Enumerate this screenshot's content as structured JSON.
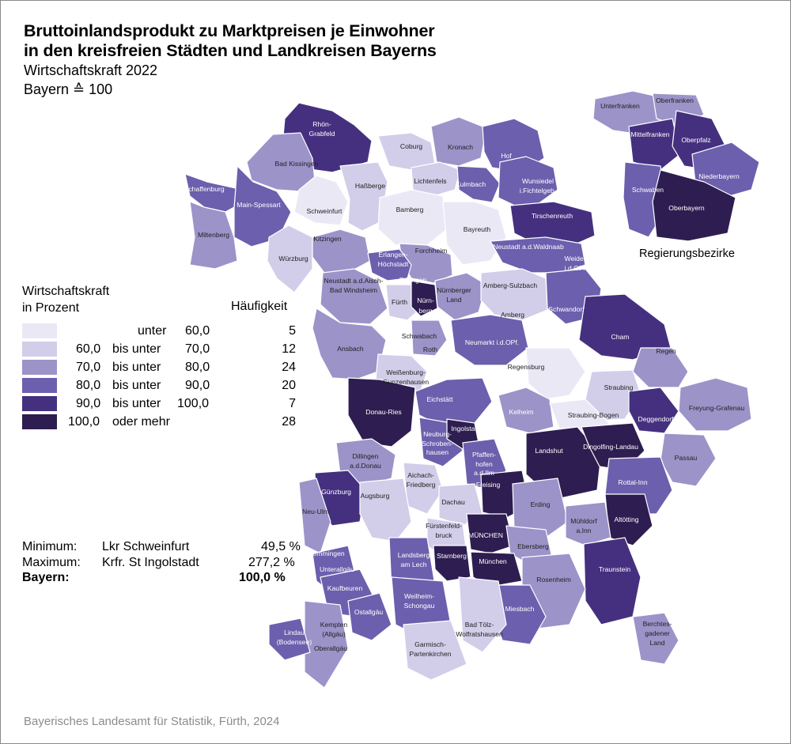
{
  "title_line1": "Bruttoinlandsprodukt zu Marktpreisen je Einwohner",
  "title_line2": "in den kreisfreien Städten und Landkreisen Bayerns",
  "subtitle1": "Wirtschaftskraft 2022",
  "subtitle2": "Bayern ≙ 100",
  "legend": {
    "heading_line1": "Wirtschaftskraft",
    "heading_line2": "in Prozent",
    "freq_heading": "Häufigkeit",
    "classes": [
      {
        "from": "",
        "mid": "unter",
        "to": "60,0",
        "count": "5",
        "color": "#ebe8f6"
      },
      {
        "from": "60,0",
        "mid": "bis unter",
        "to": "70,0",
        "count": "12",
        "color": "#d2cde9"
      },
      {
        "from": "70,0",
        "mid": "bis unter",
        "to": "80,0",
        "count": "24",
        "color": "#9c93c9"
      },
      {
        "from": "80,0",
        "mid": "bis unter",
        "to": "90,0",
        "count": "20",
        "color": "#6c5fad"
      },
      {
        "from": "90,0",
        "mid": "bis unter",
        "to": "100,0",
        "count": "7",
        "color": "#45307f"
      },
      {
        "from": "100,0",
        "mid": "oder mehr",
        "to": "",
        "count": "28",
        "color": "#2e1d50"
      }
    ]
  },
  "stats": {
    "min_label": "Minimum:",
    "min_region": "Lkr Schweinfurt",
    "min_value": "49,5 %",
    "max_label": "Maximum:",
    "max_region": "Krfr. St Ingolstadt",
    "max_value": "277,2 %",
    "bay_label": "Bayern:",
    "bay_value": "100,0 %"
  },
  "inset_label": "Regierungsbezirke",
  "source": "Bayerisches Landesamt für Statistik, Fürth, 2024",
  "map_labels": [
    {
      "text": "Rhön-",
      "cls": 4
    },
    {
      "text": "Grabfeld",
      "cls": 4
    },
    {
      "text": "Coburg",
      "cls": 1
    },
    {
      "text": "Kronach",
      "cls": 2
    },
    {
      "text": "Bad Kissingen",
      "cls": 2
    },
    {
      "text": "Hof",
      "cls": 3
    },
    {
      "text": "Haßberge",
      "cls": 1
    },
    {
      "text": "Lichtenfels",
      "cls": 1
    },
    {
      "text": "Kulmbach",
      "cls": 3
    },
    {
      "text": "Wunsiedel",
      "cls": 3
    },
    {
      "text": "i.Fichtelgeb.",
      "cls": 3
    },
    {
      "text": "Aschaffenburg",
      "cls": 3
    },
    {
      "text": "Main-Spessart",
      "cls": 3
    },
    {
      "text": "Schweinfurt",
      "cls": 0
    },
    {
      "text": "Bamberg",
      "cls": 0
    },
    {
      "text": "Tirschenreuth",
      "cls": 4
    },
    {
      "text": "Miltenberg",
      "cls": 2
    },
    {
      "text": "Bayreuth",
      "cls": 0
    },
    {
      "text": "Kitzingen",
      "cls": 2
    },
    {
      "text": "Forchheim",
      "cls": 2
    },
    {
      "text": "Neustadt a.d.Waldnaab",
      "cls": 3
    },
    {
      "text": "Erlangen-",
      "cls": 3
    },
    {
      "text": "Höchstadt",
      "cls": 3
    },
    {
      "text": "Weiden",
      "cls": 3
    },
    {
      "text": "i.d.OPf.",
      "cls": 3
    },
    {
      "text": "Würzburg",
      "cls": 1
    },
    {
      "text": "Erlangen",
      "cls": 5
    },
    {
      "text": "Neustadt a.d.Aisch-",
      "cls": 2
    },
    {
      "text": "Bad Windsheim",
      "cls": 2
    },
    {
      "text": "Amberg-Sulzbach",
      "cls": 1
    },
    {
      "text": "Nürnberger",
      "cls": 2
    },
    {
      "text": "Land",
      "cls": 2
    },
    {
      "text": "Fürth",
      "cls": 1
    },
    {
      "text": "Nürn-",
      "cls": 5
    },
    {
      "text": "berg",
      "cls": 5
    },
    {
      "text": "Schwandorf",
      "cls": 3
    },
    {
      "text": "Amberg",
      "cls": 1
    },
    {
      "text": "Schwabach",
      "cls": 2
    },
    {
      "text": "Cham",
      "cls": 4
    },
    {
      "text": "Ansbach",
      "cls": 2
    },
    {
      "text": "Neumarkt i.d.OPf.",
      "cls": 3
    },
    {
      "text": "Roth",
      "cls": 2
    },
    {
      "text": "Regen",
      "cls": 2
    },
    {
      "text": "Regensburg",
      "cls": 0
    },
    {
      "text": "Weißenburg-",
      "cls": 1
    },
    {
      "text": "Gunzenhausen",
      "cls": 1
    },
    {
      "text": "Straubing",
      "cls": 1
    },
    {
      "text": "Donau-Ries",
      "cls": 5
    },
    {
      "text": "Eichstätt",
      "cls": 3
    },
    {
      "text": "Freyung-Grafenau",
      "cls": 2
    },
    {
      "text": "Kelheim",
      "cls": 3
    },
    {
      "text": "Straubing-Bogen",
      "cls": 0
    },
    {
      "text": "Deggendorf",
      "cls": 4
    },
    {
      "text": "Neuburg-",
      "cls": 3
    },
    {
      "text": "Schroben-",
      "cls": 3
    },
    {
      "text": "hausen",
      "cls": 3
    },
    {
      "text": "Ingolstadt",
      "cls": 5
    },
    {
      "text": "Landshut",
      "cls": 5
    },
    {
      "text": "Dingolfing-Landau",
      "cls": 5
    },
    {
      "text": "Dillingen",
      "cls": 2
    },
    {
      "text": "a.d.Donau",
      "cls": 2
    },
    {
      "text": "Pfaffen-",
      "cls": 3
    },
    {
      "text": "hofen",
      "cls": 3
    },
    {
      "text": "a.d.Ilm",
      "cls": 3
    },
    {
      "text": "Passau",
      "cls": 2
    },
    {
      "text": "Aichach-",
      "cls": 1
    },
    {
      "text": "Friedberg",
      "cls": 1
    },
    {
      "text": "Günzburg",
      "cls": 4
    },
    {
      "text": "Freising",
      "cls": 5
    },
    {
      "text": "Augsburg",
      "cls": 1
    },
    {
      "text": "Rottal-Inn",
      "cls": 3
    },
    {
      "text": "Dachau",
      "cls": 1
    },
    {
      "text": "Neu-Ulm",
      "cls": 2
    },
    {
      "text": "Erding",
      "cls": 2
    },
    {
      "text": "Altötting",
      "cls": 5
    },
    {
      "text": "Fürstenfeld-",
      "cls": 1
    },
    {
      "text": "bruck",
      "cls": 1
    },
    {
      "text": "MÜNCHEN",
      "cls": 5
    },
    {
      "text": "Mühldorf",
      "cls": 2
    },
    {
      "text": "a.Inn",
      "cls": 2
    },
    {
      "text": "Memmingen",
      "cls": 3
    },
    {
      "text": "Ebersberg",
      "cls": 2
    },
    {
      "text": "Landsberg",
      "cls": 3
    },
    {
      "text": "am Lech",
      "cls": 3
    },
    {
      "text": "Starnberg",
      "cls": 5
    },
    {
      "text": "München",
      "cls": 5
    },
    {
      "text": "Unterallgäu",
      "cls": 3
    },
    {
      "text": "Traunstein",
      "cls": 4
    },
    {
      "text": "Rosenheim",
      "cls": 2
    },
    {
      "text": "Kaufbeuren",
      "cls": 3
    },
    {
      "text": "Weilheim-",
      "cls": 3
    },
    {
      "text": "Schongau",
      "cls": 3
    },
    {
      "text": "Ostallgäu",
      "cls": 3
    },
    {
      "text": "Miesbach",
      "cls": 3
    },
    {
      "text": "Kempten",
      "cls": 2
    },
    {
      "text": "(Allgäu)",
      "cls": 2
    },
    {
      "text": "Berchtes-",
      "cls": 2
    },
    {
      "text": "gadener",
      "cls": 2
    },
    {
      "text": "Land",
      "cls": 2
    },
    {
      "text": "Lindau",
      "cls": 3
    },
    {
      "text": "(Bodensee)",
      "cls": 3
    },
    {
      "text": "Bad Tölz-",
      "cls": 1
    },
    {
      "text": "Wolfratshausen",
      "cls": 1
    },
    {
      "text": "Oberallgäu",
      "cls": 2
    },
    {
      "text": "Garmisch-",
      "cls": 1
    },
    {
      "text": "Partenkirchen",
      "cls": 1
    }
  ],
  "inset_labels": [
    {
      "text": "Unterfranken",
      "cls": 2
    },
    {
      "text": "Oberfranken",
      "cls": 2
    },
    {
      "text": "Mittelfranken",
      "cls": 4
    },
    {
      "text": "Oberpfalz",
      "cls": 4
    },
    {
      "text": "Niederbayern",
      "cls": 3
    },
    {
      "text": "Schwaben",
      "cls": 3
    },
    {
      "text": "Oberbayern",
      "cls": 5
    }
  ]
}
